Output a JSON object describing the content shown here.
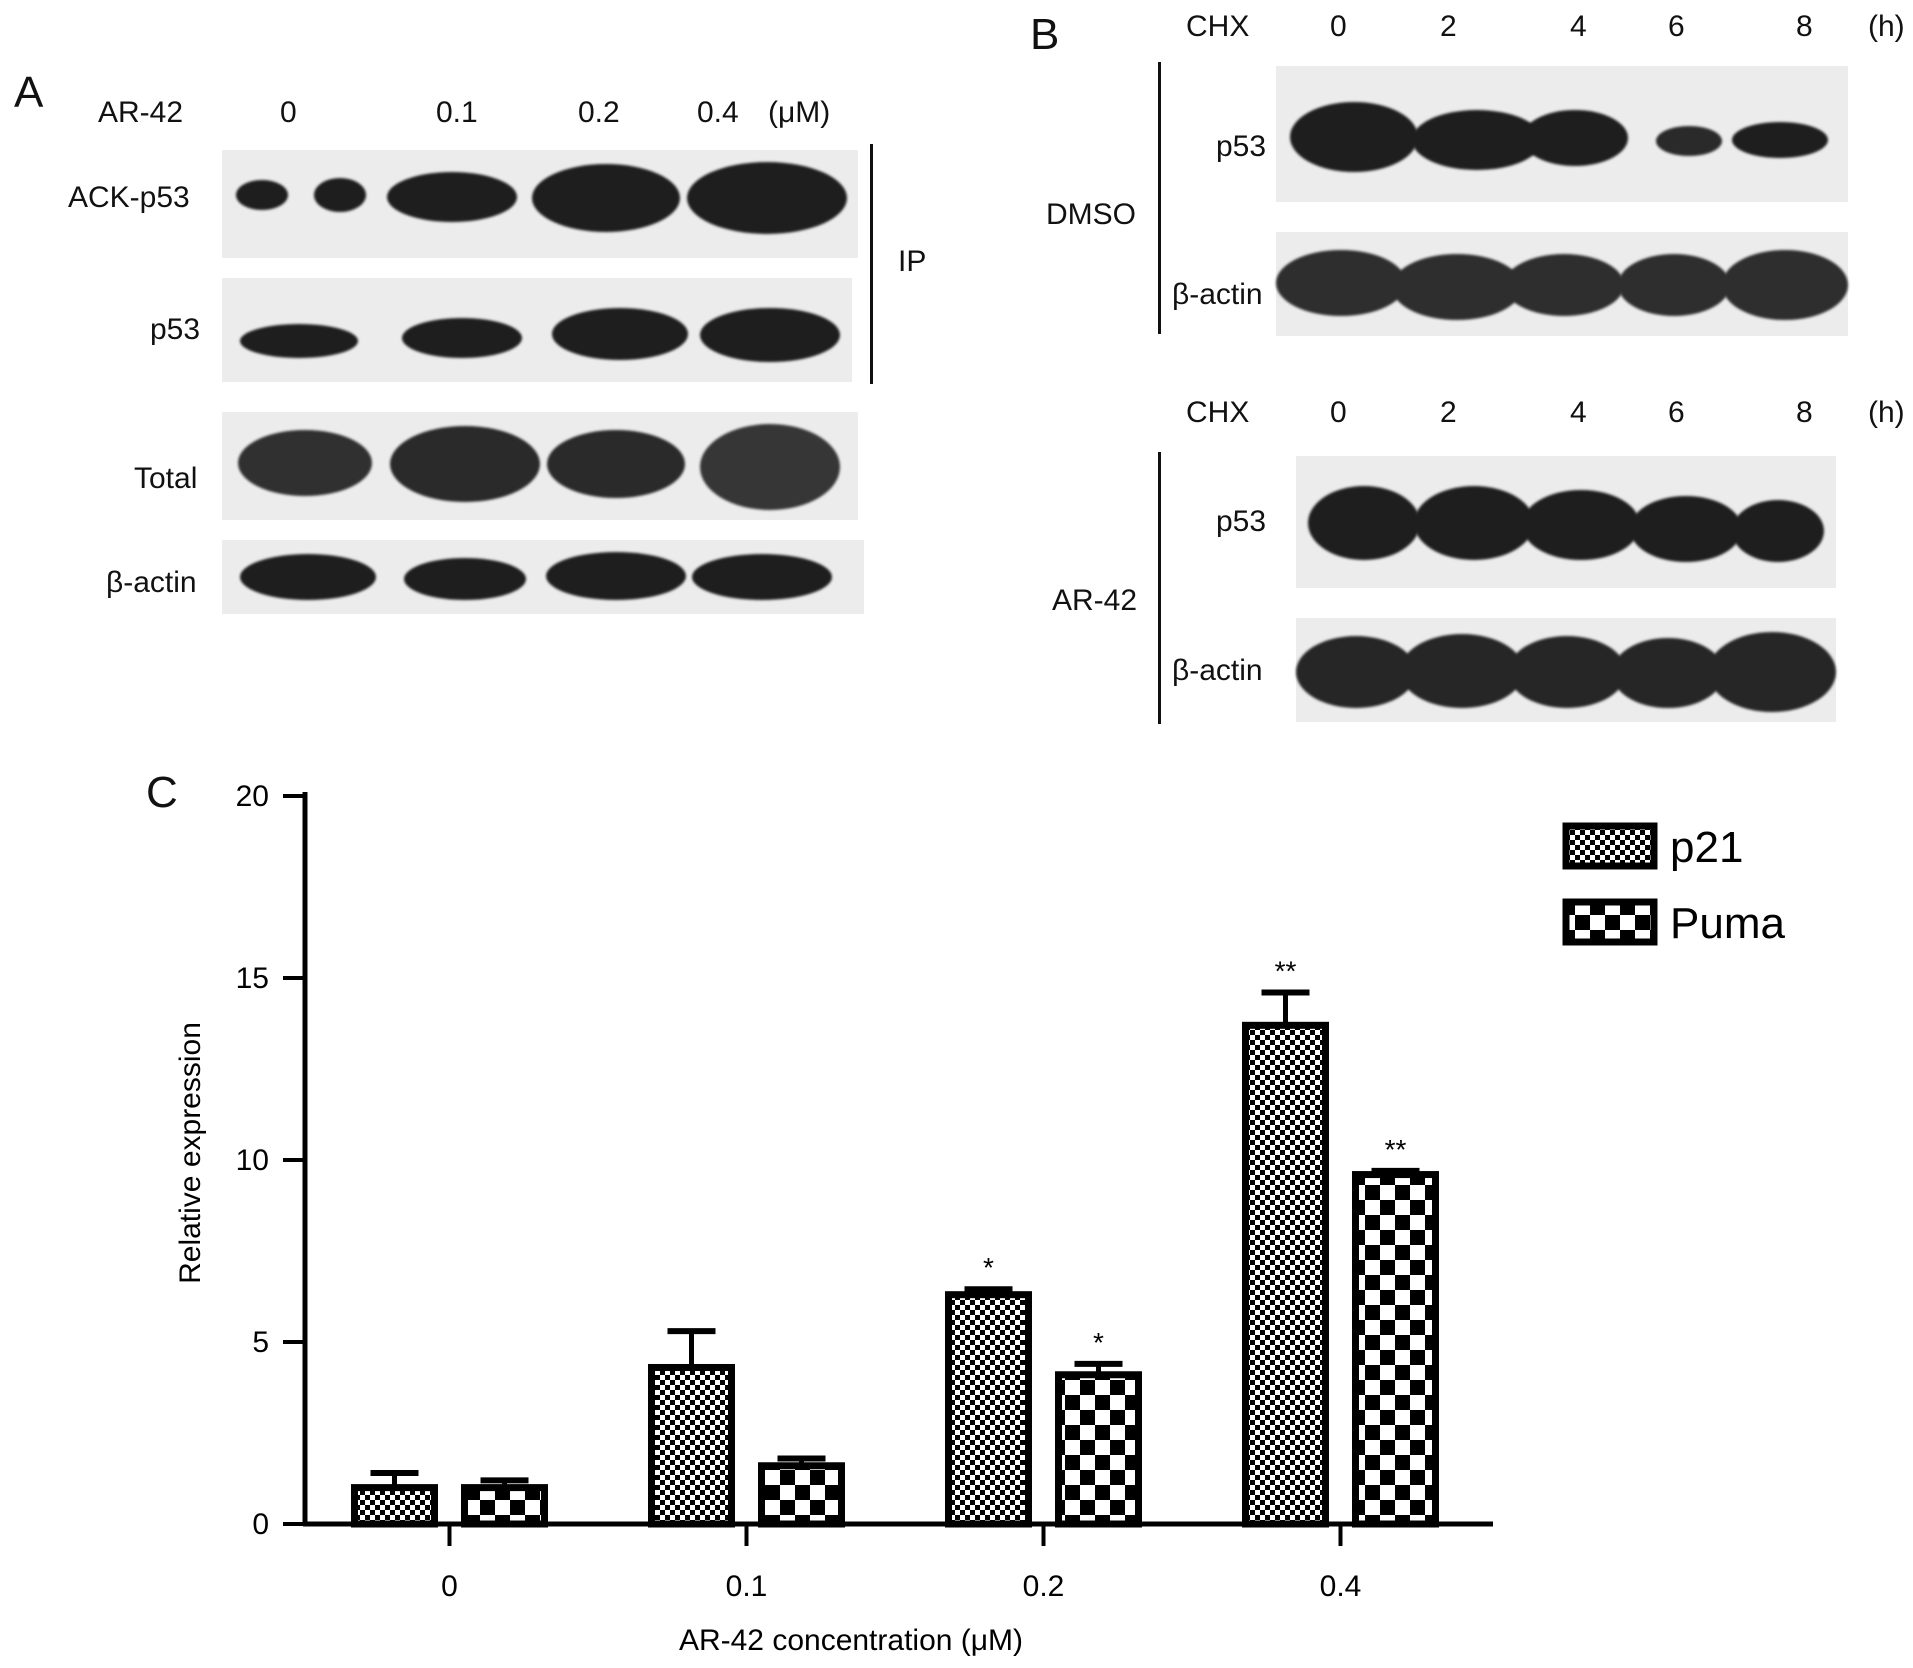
{
  "panelA": {
    "letter": "A",
    "treatment_label": "AR-42",
    "doses": [
      "0",
      "0.1",
      "0.2",
      "0.4"
    ],
    "unit": "(μM)",
    "rows": [
      "ACK-p53",
      "p53",
      "Total",
      "β-actin"
    ],
    "ip_label": "IP"
  },
  "panelB": {
    "letter": "B",
    "top": {
      "label_left": "CHX",
      "times": [
        "0",
        "2",
        "4",
        "6",
        "8"
      ],
      "unit": "(h)",
      "group": "DMSO",
      "rows": [
        "p53",
        "β-actin"
      ]
    },
    "bottom": {
      "label_left": "CHX",
      "times": [
        "0",
        "2",
        "4",
        "6",
        "8"
      ],
      "unit": "(h)",
      "group": "AR-42",
      "rows": [
        "p53",
        "β-actin"
      ]
    }
  },
  "panelC": {
    "letter": "C"
  },
  "chart_data": {
    "type": "bar",
    "categories": [
      "0",
      "0.1",
      "0.2",
      "0.4"
    ],
    "xlabel": "AR-42 concentration (μM)",
    "ylabel": "Relative expression",
    "ylim": [
      0,
      20
    ],
    "yticks": [
      "0",
      "5",
      "10",
      "15",
      "20"
    ],
    "legend_position": "top-right",
    "series": [
      {
        "name": "p21",
        "values": [
          1.0,
          4.3,
          6.3,
          13.7
        ],
        "errors": [
          0.4,
          1.0,
          0.15,
          0.9
        ],
        "annotations": [
          "",
          "",
          "*",
          "**"
        ],
        "pattern": "fine-checker"
      },
      {
        "name": "Puma",
        "values": [
          1.0,
          1.6,
          4.1,
          9.6
        ],
        "errors": [
          0.2,
          0.2,
          0.3,
          0.1
        ],
        "annotations": [
          "",
          "",
          "*",
          "**"
        ],
        "pattern": "coarse-checker"
      }
    ]
  }
}
